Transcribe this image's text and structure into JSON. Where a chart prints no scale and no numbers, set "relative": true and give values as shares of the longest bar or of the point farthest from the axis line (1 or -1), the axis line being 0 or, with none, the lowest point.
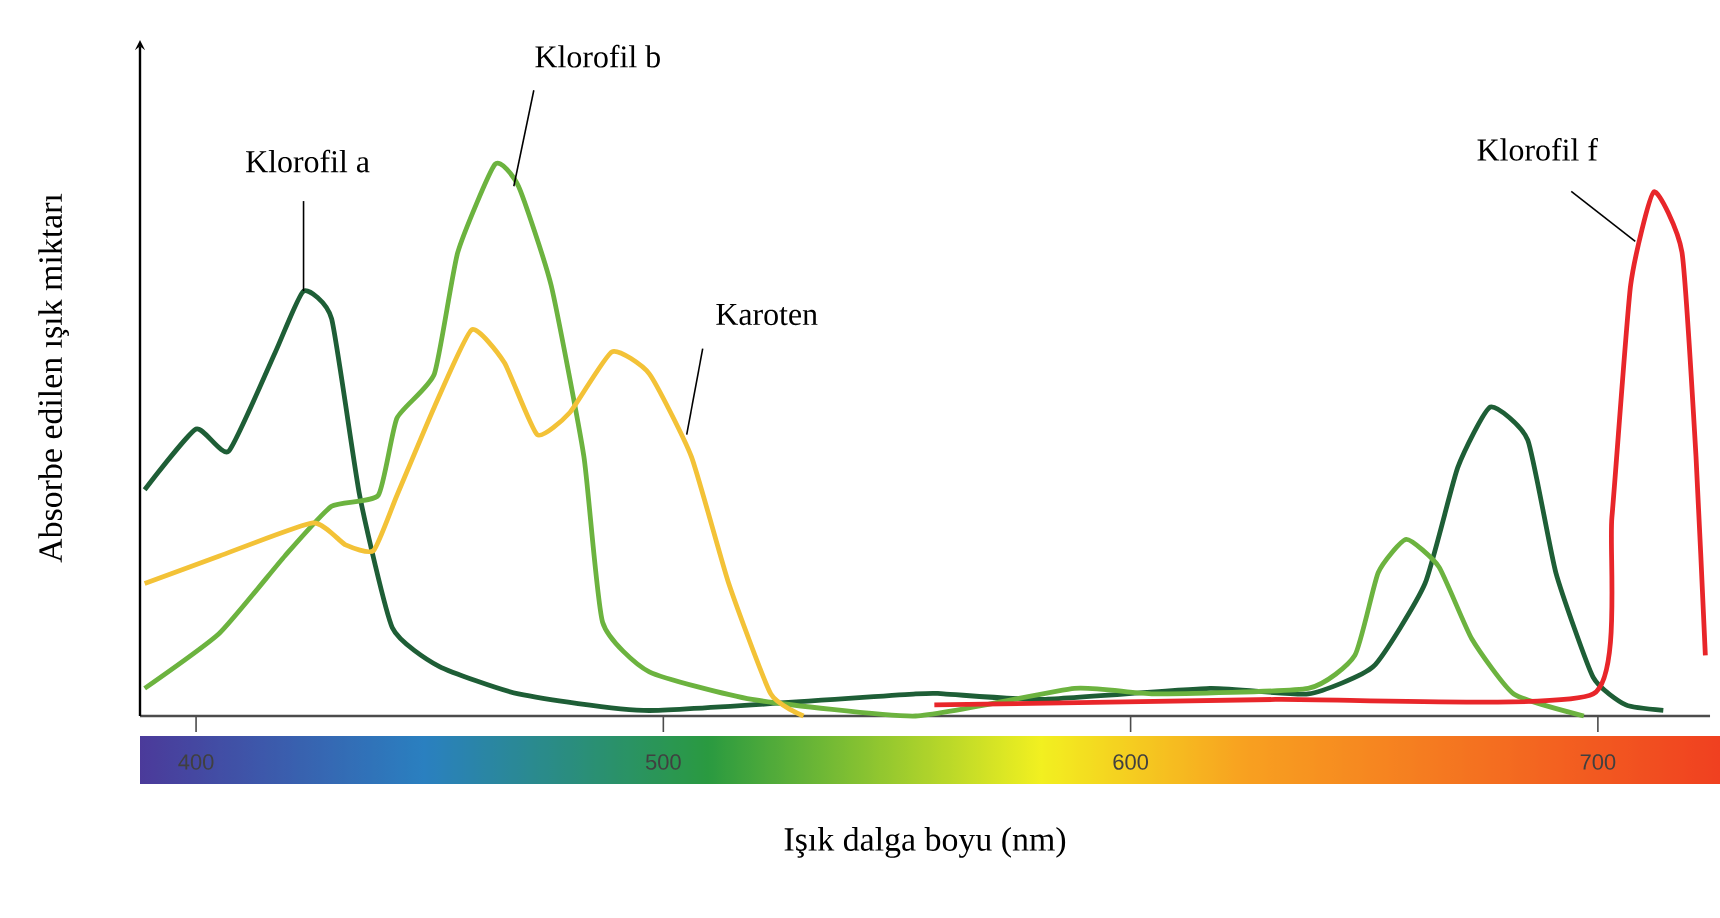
{
  "chart_data": {
    "type": "line",
    "relative": true,
    "xlabel": "Işık dalga boyu (nm)",
    "ylabel": "Absorbe edilen ışık miktarı",
    "xlim": [
      388,
      724
    ],
    "xticks": [
      400,
      500,
      600,
      700
    ],
    "grid": false,
    "marker": "none",
    "line_style": "solid",
    "series": [
      {
        "color": "#1e5e36",
        "x": [
          389,
          400,
          407,
          417,
          423,
          429,
          435,
          442,
          452,
          469,
          497,
          554,
          560,
          581,
          617,
          638,
          652,
          663,
          670,
          677,
          685,
          691,
          699,
          706,
          714
        ],
        "values": [
          0.41,
          0.52,
          0.48,
          0.66,
          0.77,
          0.72,
          0.4,
          0.16,
          0.09,
          0.04,
          0.01,
          0.04,
          0.04,
          0.03,
          0.05,
          0.04,
          0.09,
          0.24,
          0.45,
          0.56,
          0.5,
          0.26,
          0.07,
          0.02,
          0.01
        ]
      },
      {
        "color": "#6cb33f",
        "x": [
          389,
          405,
          419,
          429,
          439,
          443,
          451,
          456,
          464,
          469,
          476,
          483,
          487,
          497,
          519,
          554,
          588,
          605,
          638,
          648,
          653,
          659,
          666,
          673,
          682,
          697
        ],
        "values": [
          0.05,
          0.15,
          0.29,
          0.38,
          0.4,
          0.54,
          0.62,
          0.84,
          1,
          0.96,
          0.78,
          0.47,
          0.17,
          0.08,
          0.03,
          0.0,
          0.05,
          0.04,
          0.05,
          0.11,
          0.26,
          0.32,
          0.27,
          0.14,
          0.04,
          0.0
        ]
      },
      {
        "color": "#f3c237",
        "x": [
          389,
          405,
          425,
          432,
          438,
          443,
          451,
          459,
          466,
          473,
          480,
          489,
          497,
          506,
          514,
          523,
          530
        ],
        "values": [
          0.24,
          0.29,
          0.35,
          0.31,
          0.3,
          0.4,
          0.56,
          0.7,
          0.64,
          0.51,
          0.55,
          0.66,
          0.62,
          0.47,
          0.24,
          0.04,
          0.0
        ]
      },
      {
        "color": "#e8262a",
        "x": [
          558,
          631,
          699,
          703,
          707,
          712,
          718,
          721,
          723
        ],
        "values": [
          0.02,
          0.03,
          0.04,
          0.36,
          0.78,
          0.95,
          0.84,
          0.47,
          0.11
        ]
      }
    ],
    "annotations": [
      {
        "text": "Klorofil a",
        "x": 423,
        "y": 0.77
      },
      {
        "text": "Klorofil b",
        "x": 468,
        "y": 0.96
      },
      {
        "text": "Karoten",
        "x": 505,
        "y": 0.51
      },
      {
        "text": "Klorofil f",
        "x": 708,
        "y": 0.86
      }
    ]
  }
}
